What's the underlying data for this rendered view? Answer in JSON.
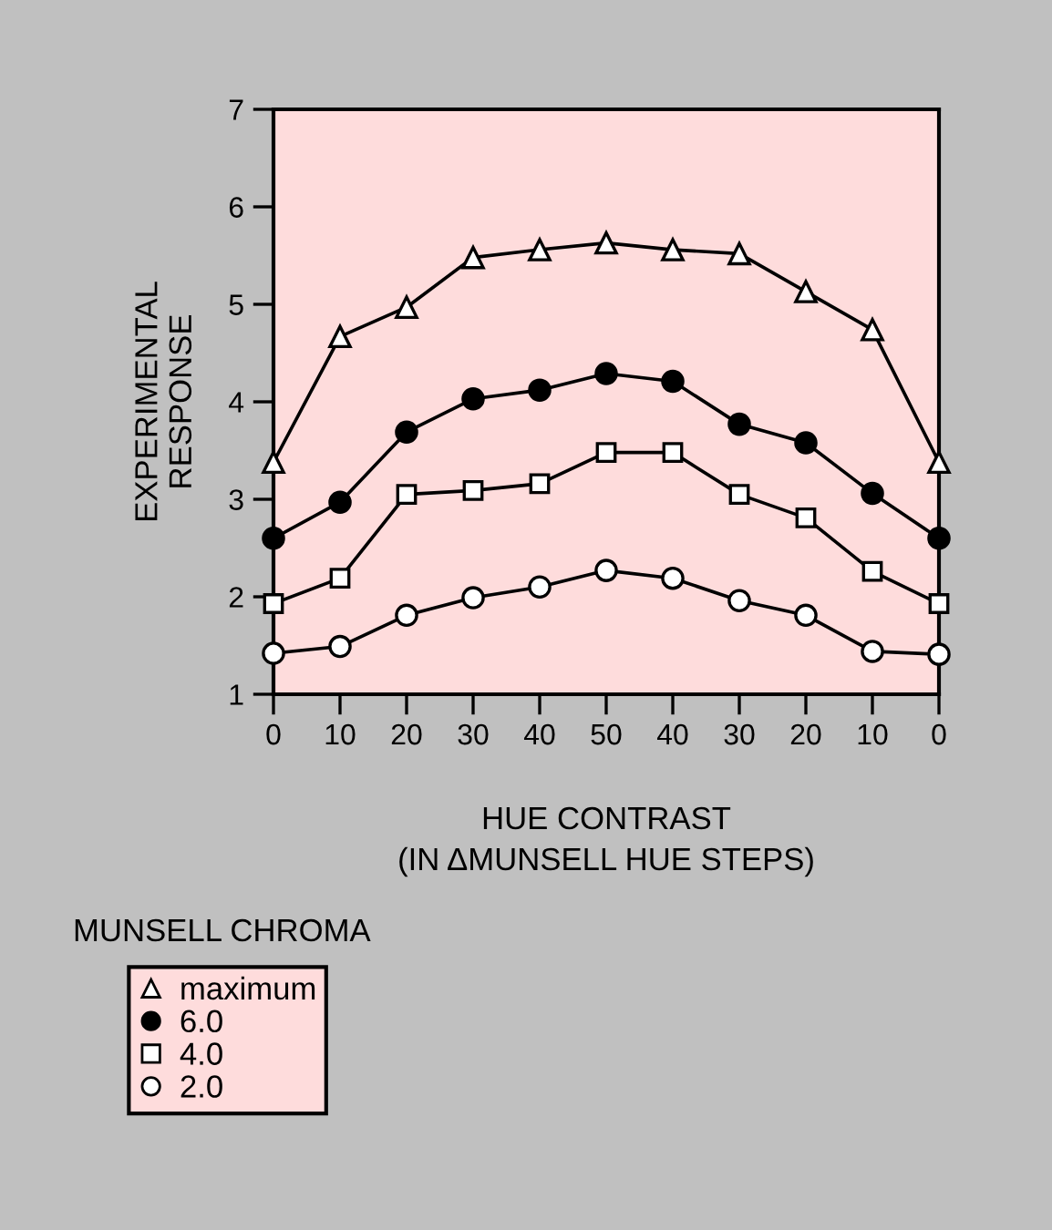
{
  "chart_data": {
    "type": "line",
    "xlabel": "HUE CONTRAST\n(IN ΔMUNSELL HUE STEPS)",
    "ylabel": "EXPERIMENTAL\nRESPONSE",
    "legend_title": "MUNSELL CHROMA",
    "categories": [
      "0",
      "10",
      "20",
      "30",
      "40",
      "50",
      "40",
      "30",
      "20",
      "10",
      "0"
    ],
    "ylim": [
      1,
      7
    ],
    "yticks": [
      1,
      2,
      3,
      4,
      5,
      6,
      7
    ],
    "grid": false,
    "legend": "bottom left",
    "line_style": "solid",
    "series": [
      {
        "name": "maximum",
        "marker": "triangle",
        "color": "#ffffff",
        "values": [
          3.38,
          4.67,
          4.97,
          5.48,
          5.56,
          5.63,
          5.56,
          5.52,
          5.13,
          4.74,
          3.38
        ]
      },
      {
        "name": "6.0",
        "marker": "circle",
        "color": "#000000",
        "values": [
          2.6,
          2.97,
          3.69,
          4.03,
          4.12,
          4.29,
          4.21,
          3.77,
          3.58,
          3.06,
          2.6
        ]
      },
      {
        "name": "4.0",
        "marker": "square",
        "color": "#ffffff",
        "values": [
          1.93,
          2.19,
          3.05,
          3.09,
          3.16,
          3.48,
          3.48,
          3.05,
          2.81,
          2.26,
          1.93
        ]
      },
      {
        "name": "2.0",
        "marker": "circle",
        "color": "#ffffff",
        "values": [
          1.42,
          1.49,
          1.81,
          1.99,
          2.1,
          2.27,
          2.19,
          1.96,
          1.81,
          1.44,
          1.41
        ]
      }
    ]
  }
}
